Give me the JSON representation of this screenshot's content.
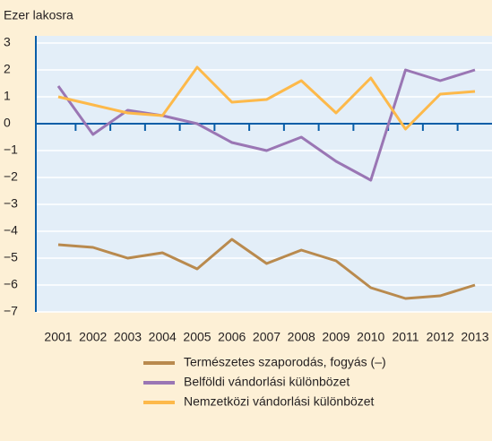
{
  "chart_data": {
    "type": "line",
    "y_axis_label": "Ezer lakosra",
    "categories": [
      "2001",
      "2002",
      "2003",
      "2004",
      "2005",
      "2006",
      "2007",
      "2008",
      "2009",
      "2010",
      "2011",
      "2012",
      "2013"
    ],
    "series": [
      {
        "name": "Természetes szaporodás, fogyás (–)",
        "color": "#b98a4e",
        "values": [
          -4.5,
          -4.6,
          -5.0,
          -4.8,
          -5.4,
          -4.3,
          -5.2,
          -4.7,
          -5.1,
          -6.1,
          -6.5,
          -6.4,
          -6.0
        ]
      },
      {
        "name": "Belföldi vándorlási különbözet",
        "color": "#9a76b4",
        "values": [
          1.4,
          -0.4,
          0.5,
          0.3,
          0.0,
          -0.7,
          -1.0,
          -0.5,
          -1.4,
          -2.1,
          2.0,
          1.6,
          2.0
        ]
      },
      {
        "name": "Nemzetközi vándorlási különbözet",
        "color": "#fdb94a",
        "values": [
          1.0,
          0.7,
          0.4,
          0.3,
          2.1,
          0.8,
          0.9,
          1.6,
          0.4,
          1.7,
          -0.2,
          1.1,
          1.2
        ]
      }
    ],
    "ylim": [
      -7,
      3
    ],
    "yticks": [
      3,
      2,
      1,
      0,
      {
        "value": -1,
        "label": "−1"
      },
      {
        "value": -2,
        "label": "−2"
      },
      {
        "value": -3,
        "label": "−3"
      },
      {
        "value": -4,
        "label": "−4"
      },
      {
        "value": -5,
        "label": "−5"
      },
      {
        "value": -6,
        "label": "−6"
      },
      {
        "value": -7,
        "label": "−7"
      }
    ],
    "grid": true,
    "legend": "bottom"
  }
}
